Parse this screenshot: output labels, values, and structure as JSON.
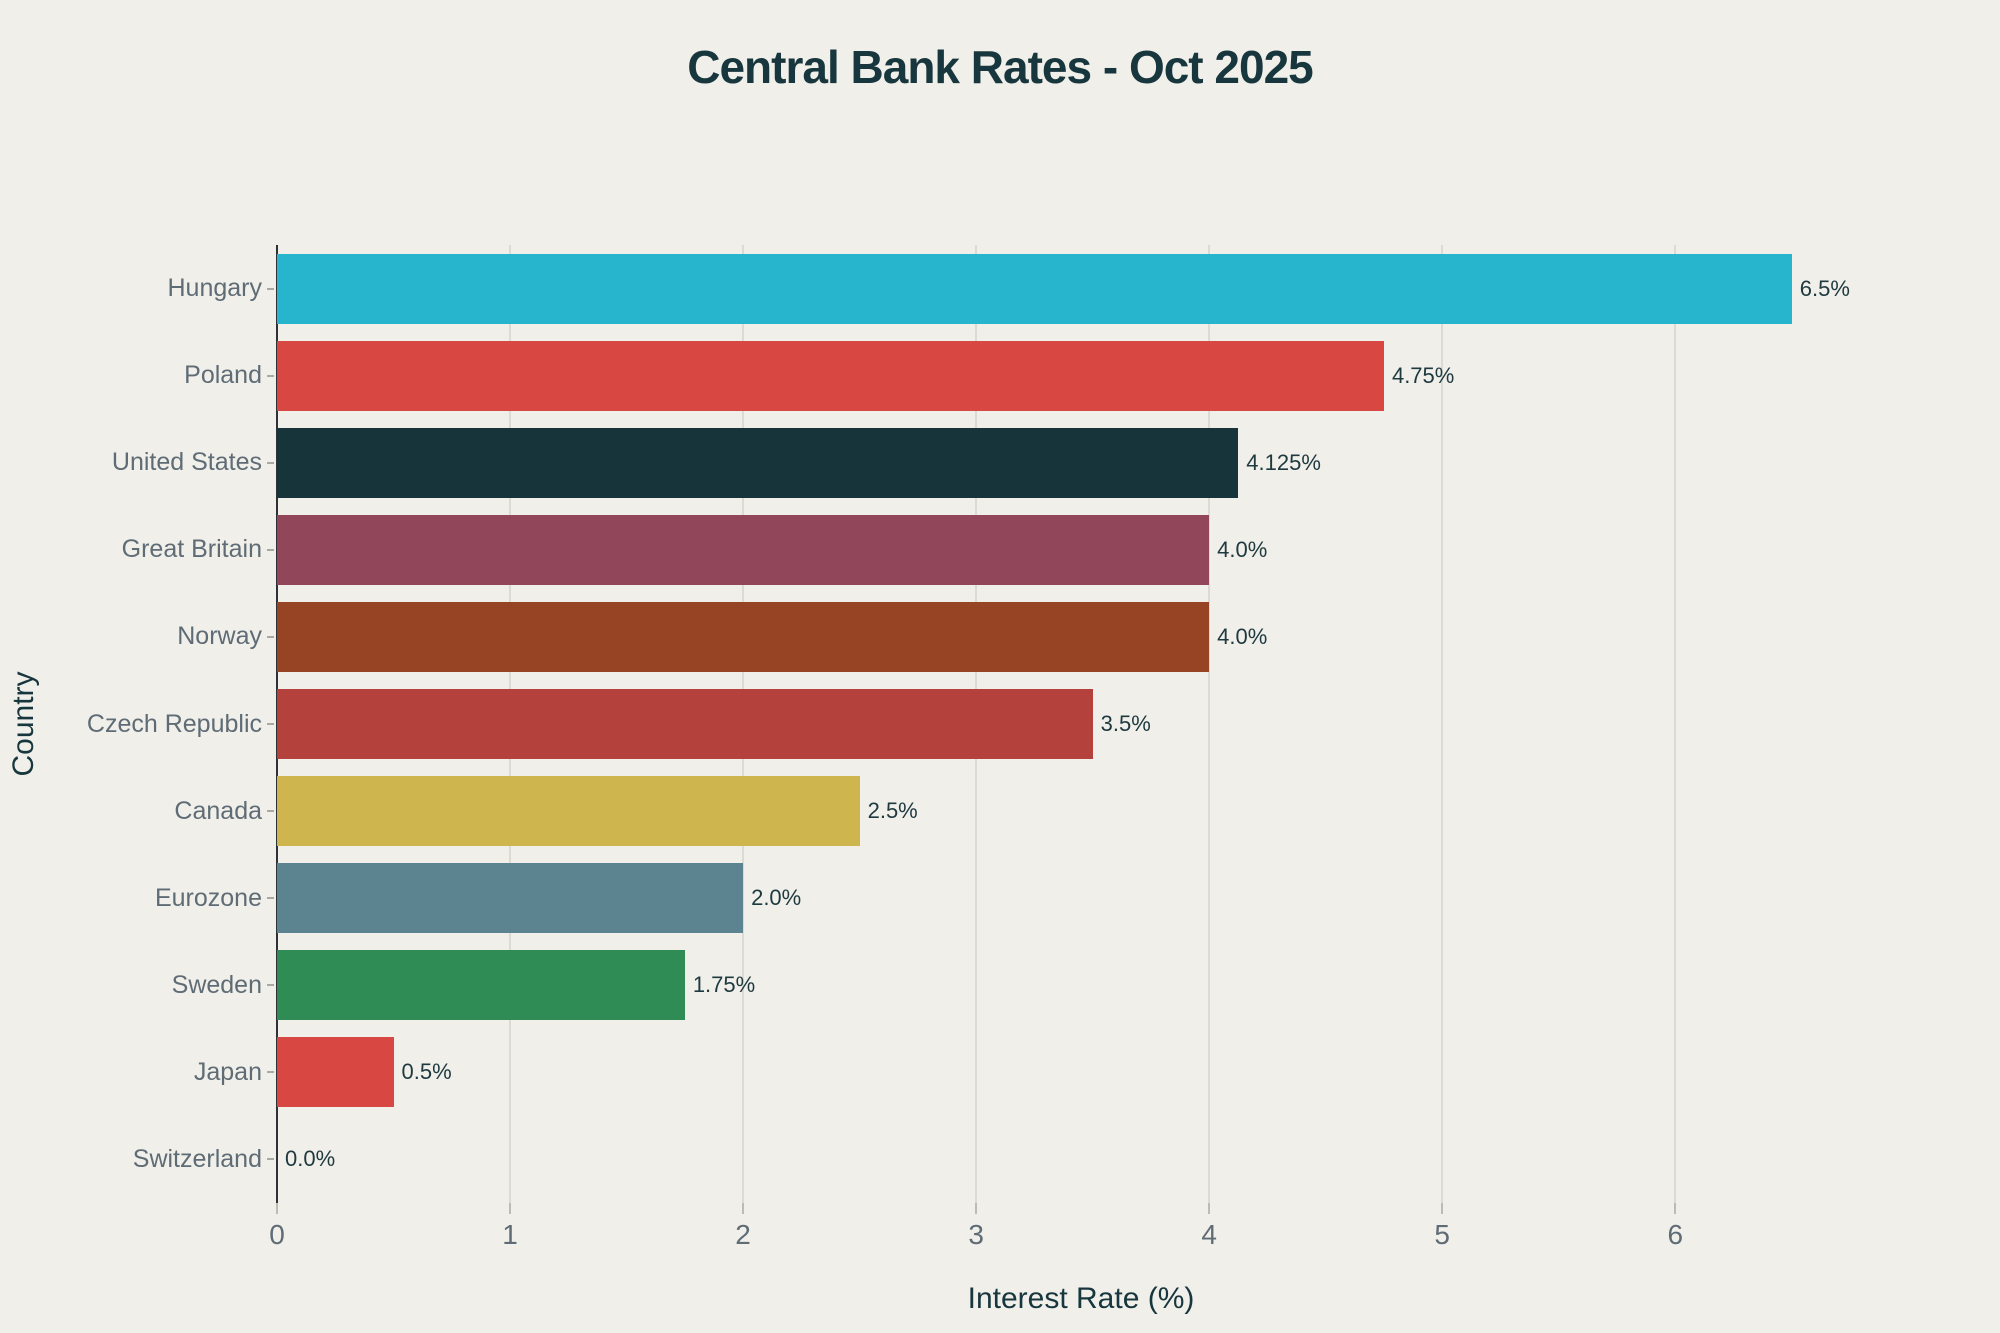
{
  "chart_data": {
    "type": "bar",
    "orientation": "horizontal",
    "title": "Central Bank Rates - Oct 2025",
    "xlabel": "Interest Rate (%)",
    "ylabel": "Country",
    "categories": [
      "Hungary",
      "Poland",
      "United States",
      "Great Britain",
      "Norway",
      "Czech Republic",
      "Canada",
      "Eurozone",
      "Sweden",
      "Japan",
      "Switzerland"
    ],
    "values": [
      6.5,
      4.75,
      4.125,
      4.0,
      4.0,
      3.5,
      2.5,
      2.0,
      1.75,
      0.5,
      0.0
    ],
    "value_labels": [
      "6.5%",
      "4.75%",
      "4.125%",
      "4.0%",
      "4.0%",
      "3.5%",
      "2.5%",
      "2.0%",
      "1.75%",
      "0.5%",
      "0.0%"
    ],
    "bar_colors": [
      "#27b5ce",
      "#d94743",
      "#18343b",
      "#914659",
      "#964423",
      "#b5413c",
      "#cfb54d",
      "#5c8490",
      "#2f8c55",
      "#d94743",
      "#8a8a84"
    ],
    "xlim": [
      0,
      6.9
    ],
    "xticks": [
      "0",
      "1",
      "2",
      "3",
      "4",
      "5",
      "6"
    ],
    "grid": true,
    "legend": "none"
  },
  "colors": {
    "background": "#f0efe9",
    "title": "#17363d",
    "tick_label": "#5f6c76",
    "value_label": "#1e3940",
    "gridline": "#dcdbd2",
    "axis_line": "#2e3236"
  }
}
